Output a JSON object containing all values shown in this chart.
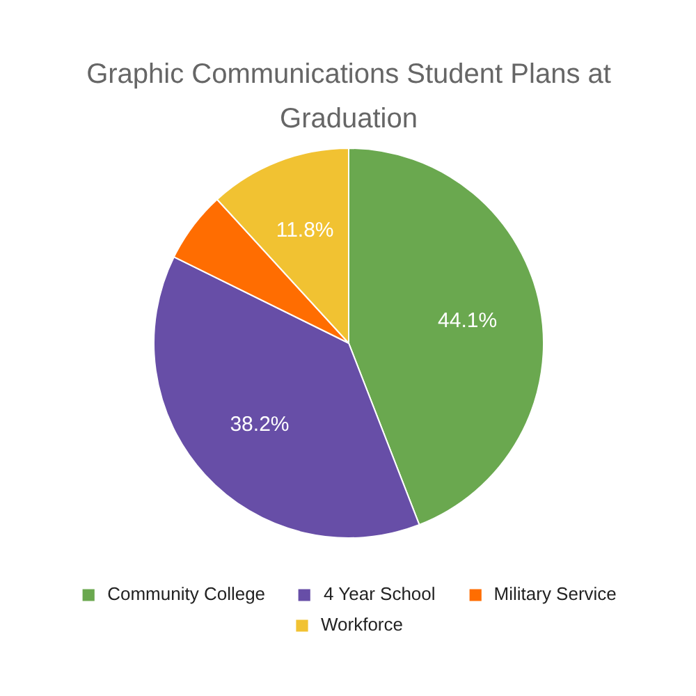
{
  "chart_data": {
    "type": "pie",
    "title": "Graphic Communications Student Plans at Graduation",
    "categories": [
      "Community College",
      "4 Year School",
      "Military Service",
      "Workforce"
    ],
    "values": [
      44.1,
      38.2,
      5.9,
      11.8
    ],
    "colors": [
      "#6aa84f",
      "#674ea7",
      "#ff6d01",
      "#f1c232"
    ],
    "value_labels": [
      "44.1%",
      "38.2%",
      null,
      "11.8%"
    ],
    "legend": "bottom"
  }
}
